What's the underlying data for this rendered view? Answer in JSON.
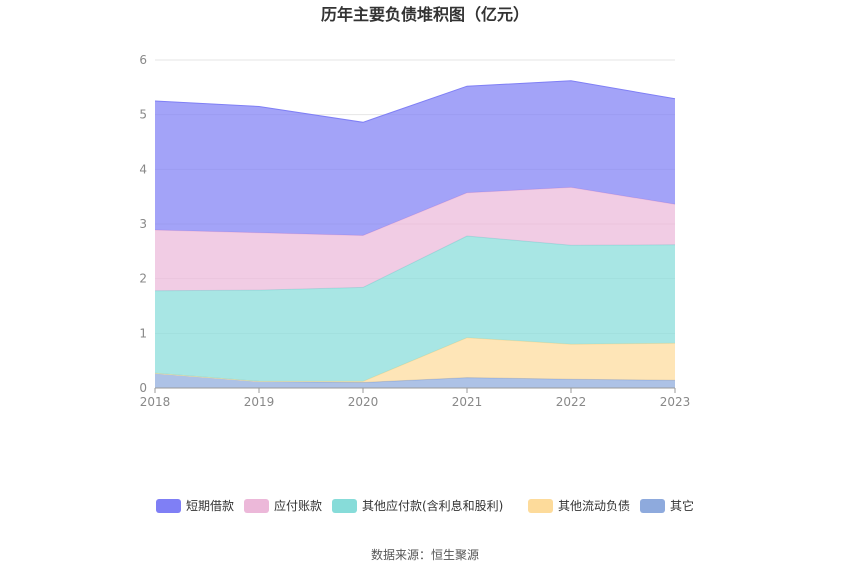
{
  "chart_data": {
    "type": "area",
    "stacked": true,
    "title": "历年主要负债堆积图（亿元）",
    "categories": [
      "2018",
      "2019",
      "2020",
      "2021",
      "2022",
      "2023"
    ],
    "ylim": [
      0,
      6
    ],
    "y_ticks": [
      "0",
      "1",
      "2",
      "3",
      "4",
      "5",
      "6"
    ],
    "grid": true,
    "legend_position": "bottom",
    "series": [
      {
        "name": "其它",
        "color": "#8eaadd",
        "values": [
          0.27,
          0.12,
          0.1,
          0.19,
          0.16,
          0.14
        ]
      },
      {
        "name": "其他流动负债",
        "color": "#fddb9b",
        "values": [
          0.0,
          0.0,
          0.02,
          0.73,
          0.64,
          0.68
        ]
      },
      {
        "name": "其他应付款(含利息和股利)",
        "color": "#87dcd9",
        "values": [
          1.51,
          1.67,
          1.72,
          1.86,
          1.81,
          1.8
        ]
      },
      {
        "name": "应付账款",
        "color": "#ecb8d9",
        "values": [
          1.11,
          1.05,
          0.95,
          0.79,
          1.06,
          0.74
        ]
      },
      {
        "name": "短期借款",
        "color": "#7f7ff5",
        "values": [
          2.36,
          2.31,
          2.07,
          1.95,
          1.95,
          1.93
        ]
      }
    ],
    "legend_order": [
      "短期借款",
      "应付账款",
      "其他应付款(含利息和股利)",
      "其他流动负债",
      "其它"
    ]
  },
  "footer": {
    "source": "数据来源：恒生聚源"
  }
}
